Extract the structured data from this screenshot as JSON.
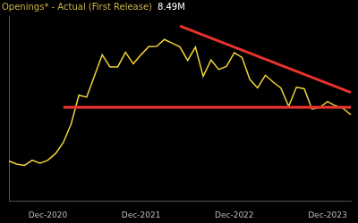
{
  "chart_data": {
    "type": "line",
    "title": "Openings* - Actual (First Release)",
    "subtitle": "8.49M",
    "categories": [
      null,
      null,
      null,
      null,
      null,
      "Dec-2020",
      null,
      null,
      null,
      null,
      null,
      null,
      null,
      null,
      null,
      null,
      null,
      "Dec-2021",
      null,
      null,
      null,
      null,
      null,
      null,
      null,
      null,
      null,
      null,
      null,
      "Dec-2022",
      null,
      null,
      null,
      null,
      null,
      null,
      null,
      null,
      null,
      null,
      null,
      "Dec-2023",
      null,
      null,
      null
    ],
    "series": [
      {
        "color": "#f2d43a",
        "values": [
          6.62,
          6.49,
          6.44,
          6.65,
          6.53,
          6.65,
          6.92,
          7.37,
          8.12,
          9.29,
          9.21,
          10.07,
          10.93,
          10.44,
          10.44,
          11.03,
          10.56,
          10.93,
          11.26,
          11.27,
          11.55,
          11.4,
          11.25,
          10.7,
          11.24,
          10.05,
          10.72,
          10.33,
          10.46,
          11.01,
          10.82,
          9.93,
          9.59,
          10.1,
          9.82,
          9.58,
          8.83,
          9.61,
          9.55,
          8.73,
          8.79,
          9.03,
          8.86,
          8.76,
          8.49
        ]
      },
      {
        "color": "#e8322e",
        "values": [
          null,
          null,
          null,
          null,
          null,
          null,
          null,
          8.8,
          null,
          null,
          null,
          null,
          null,
          null,
          null,
          null,
          null,
          null,
          null,
          null,
          null,
          null,
          null,
          null,
          null,
          null,
          null,
          null,
          null,
          null,
          null,
          null,
          null,
          null,
          null,
          null,
          null,
          null,
          null,
          null,
          null,
          null,
          null,
          null,
          8.8
        ]
      },
      {
        "color": "#e8322e",
        "values": [
          null,
          null,
          null,
          null,
          null,
          null,
          null,
          null,
          null,
          null,
          null,
          null,
          null,
          null,
          null,
          null,
          null,
          null,
          null,
          null,
          null,
          null,
          12.1,
          null,
          null,
          null,
          null,
          null,
          null,
          null,
          null,
          null,
          null,
          null,
          null,
          null,
          null,
          null,
          null,
          null,
          null,
          null,
          null,
          null,
          9.4
        ]
      }
    ],
    "ylim": [
      5,
      12.5
    ],
    "tick_labels": "x",
    "grid": false,
    "legend": "none"
  }
}
